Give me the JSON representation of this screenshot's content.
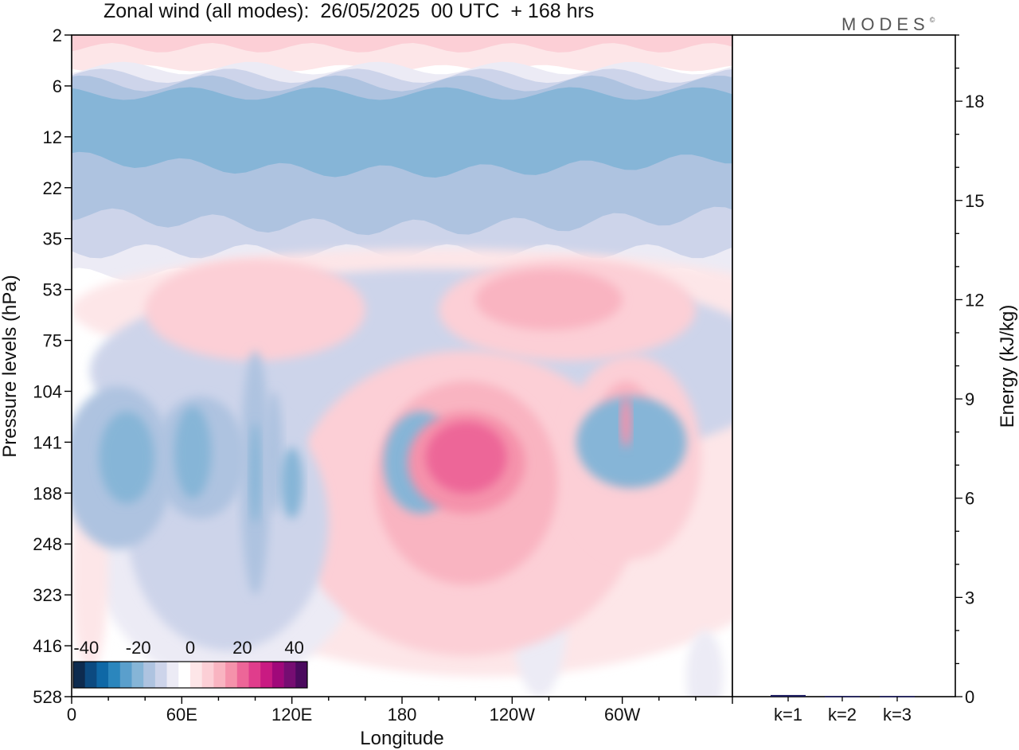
{
  "title": "Zonal wind (all modes):  26/05/2025  00 UTC  + 168 hrs",
  "brand": "MODES",
  "brand_mark": "©",
  "chart_data": [
    {
      "type": "heatmap",
      "title": "Zonal wind (all modes):  26/05/2025  00 UTC  + 168 hrs",
      "xlabel": "Longitude",
      "ylabel": "Pressure levels (hPa)",
      "x_ticks": [
        "0",
        "60E",
        "120E",
        "180",
        "120W",
        "60W"
      ],
      "x_tick_deg": [
        0,
        60,
        120,
        180,
        240,
        300
      ],
      "x_range": [
        0,
        360
      ],
      "y_ticks": [
        "2",
        "6",
        "12",
        "22",
        "35",
        "53",
        "75",
        "104",
        "141",
        "188",
        "248",
        "323",
        "416",
        "528"
      ],
      "colorbar": {
        "ticks": [
          "-40",
          "-20",
          "0",
          "20",
          "40"
        ],
        "tick_values": [
          -40,
          -20,
          0,
          20,
          40
        ],
        "range": [
          -45,
          45
        ],
        "colors": [
          "#0d2b4f",
          "#0c4a80",
          "#0f68a6",
          "#2b86bd",
          "#5a9fcc",
          "#86b5d7",
          "#aec3e0",
          "#cdd4ea",
          "#ecebf5",
          "#ffffff",
          "#fde6e8",
          "#fccfd6",
          "#f9b4c1",
          "#f592ab",
          "#ed6698",
          "#e03d8c",
          "#c91a82",
          "#a0087a",
          "#760d72",
          "#4b0a5e"
        ]
      },
      "regions": [
        {
          "level": -3,
          "x": 100,
          "y": 8.6,
          "rx": 8,
          "ry": 2.4
        },
        {
          "level": -4,
          "x": 100,
          "y": 8.6,
          "rx": 3,
          "ry": 1.0
        },
        {
          "level": -2,
          "x": 200,
          "y": 6.6,
          "rx": 190,
          "ry": 2.0
        },
        {
          "level": -4,
          "x": 190,
          "y": 8.4,
          "rx": 20,
          "ry": 1.0
        },
        {
          "level": -4,
          "x": 305,
          "y": 8.0,
          "rx": 30,
          "ry": 0.9
        },
        {
          "level": -3,
          "x": 310,
          "y": 7.9,
          "rx": 14,
          "ry": 0.6
        },
        {
          "level": -4,
          "x": 120,
          "y": 8.8,
          "rx": 6,
          "ry": 0.7
        },
        {
          "level": -3,
          "x": 25,
          "y": 8.5,
          "rx": 30,
          "ry": 1.6
        },
        {
          "level": -4,
          "x": 30,
          "y": 8.3,
          "rx": 15,
          "ry": 0.9
        },
        {
          "level": 1,
          "x": 200,
          "y": 5.4,
          "rx": 200,
          "ry": 1.2
        },
        {
          "level": 2,
          "x": 100,
          "y": 5.4,
          "rx": 60,
          "ry": 1.0
        },
        {
          "level": 2,
          "x": 270,
          "y": 5.4,
          "rx": 70,
          "ry": 1.0
        },
        {
          "level": 3,
          "x": 260,
          "y": 5.2,
          "rx": 40,
          "ry": 0.6
        },
        {
          "level": 1,
          "x": 225,
          "y": 9.1,
          "rx": 190,
          "ry": 3.5
        },
        {
          "level": 2,
          "x": 215,
          "y": 9.2,
          "rx": 95,
          "ry": 3.0
        },
        {
          "level": 3,
          "x": 215,
          "y": 8.8,
          "rx": 50,
          "ry": 2.0
        },
        {
          "level": 4,
          "x": 215,
          "y": 8.4,
          "rx": 32,
          "ry": 1.0
        },
        {
          "level": 5,
          "x": 215,
          "y": 8.3,
          "rx": 22,
          "ry": 0.7
        },
        {
          "level": 2,
          "x": 305,
          "y": 8.3,
          "rx": 38,
          "ry": 2.0
        },
        {
          "level": 3,
          "x": 302,
          "y": 7.8,
          "rx": 16,
          "ry": 1.0
        },
        {
          "level": 4,
          "x": 302,
          "y": 7.6,
          "rx": 3,
          "ry": 0.5
        },
        {
          "level": -1,
          "x": 85,
          "y": 9.3,
          "rx": 80,
          "ry": 3.5
        },
        {
          "level": -2,
          "x": 85,
          "y": 9.6,
          "rx": 55,
          "ry": 2.5
        },
        {
          "level": -3,
          "x": 70,
          "y": 8.3,
          "rx": 25,
          "ry": 1.2
        },
        {
          "level": -4,
          "x": 66,
          "y": 8.2,
          "rx": 10,
          "ry": 0.9
        },
        {
          "level": -3,
          "x": 110,
          "y": 8.2,
          "rx": 5,
          "ry": 1.2
        },
        {
          "level": -1,
          "x": 255,
          "y": 11.4,
          "rx": 15,
          "ry": 1.6
        },
        {
          "level": -1,
          "x": 345,
          "y": 12.6,
          "rx": 10,
          "ry": 0.9
        },
        {
          "level": -1,
          "x": 355,
          "y": 6.6,
          "rx": 6,
          "ry": 0.5
        },
        {
          "level": 1,
          "x": 10,
          "y": 10.5,
          "rx": 10,
          "ry": 2.0
        }
      ]
    },
    {
      "type": "bar",
      "ylabel": "Energy (kJ/kg)",
      "categories": [
        "k=1",
        "k=2",
        "k=3"
      ],
      "values": [
        0.05,
        0.02,
        0.02
      ],
      "ylim": [
        0,
        20
      ],
      "y_ticks": [
        "0",
        "3",
        "6",
        "9",
        "12",
        "15",
        "18"
      ],
      "y_tick_values": [
        0,
        3,
        6,
        9,
        12,
        15,
        18
      ],
      "bar_color": "#1a1a5e"
    }
  ]
}
